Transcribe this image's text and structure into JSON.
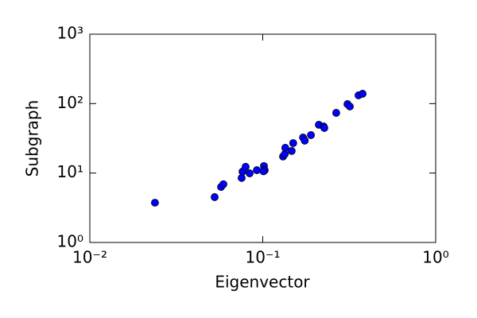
{
  "chart_data": {
    "type": "scatter",
    "xlabel": "Eigenvector",
    "ylabel": "Subgraph",
    "xscale": "log",
    "yscale": "log",
    "xlim": [
      0.01,
      1
    ],
    "ylim": [
      1,
      1000
    ],
    "xticks": [
      {
        "value": 0.01,
        "label": "10⁻²"
      },
      {
        "value": 0.1,
        "label": "10⁻¹"
      },
      {
        "value": 1,
        "label": "10⁰"
      }
    ],
    "yticks": [
      {
        "value": 1,
        "label": "10⁰"
      },
      {
        "value": 10,
        "label": "10¹"
      },
      {
        "value": 100,
        "label": "10²"
      },
      {
        "value": 1000,
        "label": "10³"
      }
    ],
    "color": "#0000ff",
    "x": [
      0.0238,
      0.0527,
      0.0574,
      0.0592,
      0.0755,
      0.0764,
      0.0796,
      0.084,
      0.0924,
      0.1016,
      0.1027,
      0.101,
      0.131,
      0.134,
      0.135,
      0.147,
      0.15,
      0.171,
      0.175,
      0.19,
      0.211,
      0.225,
      0.227,
      0.266,
      0.309,
      0.319,
      0.358,
      0.378
    ],
    "y": [
      3.74,
      4.5,
      6.3,
      6.9,
      8.5,
      10.5,
      12.3,
      9.9,
      11.0,
      12.6,
      11.0,
      10.6,
      17.3,
      18.7,
      23.1,
      20.8,
      27.0,
      32.5,
      29.3,
      35.2,
      49.6,
      47.0,
      44.6,
      73.6,
      98.4,
      91,
      131.6,
      138.7
    ]
  }
}
